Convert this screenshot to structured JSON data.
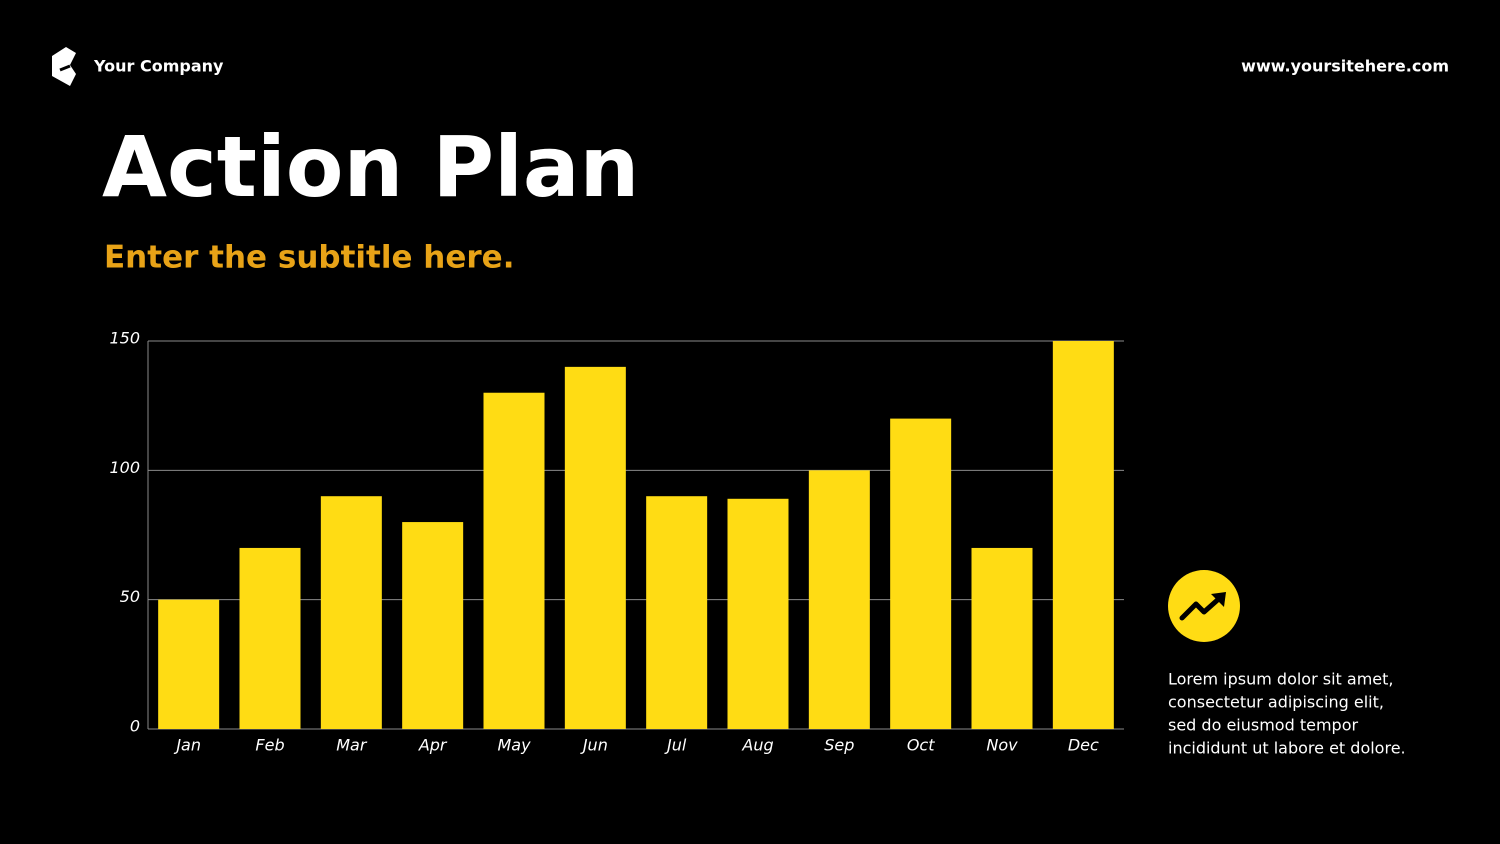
{
  "header": {
    "company": "Your Company",
    "website": "www.yoursitehere.com"
  },
  "chart_data": {
    "type": "bar",
    "title": "Action Plan",
    "subtitle": "Enter the subtitle here.",
    "categories": [
      "Jan",
      "Feb",
      "Mar",
      "Apr",
      "May",
      "Jun",
      "Jul",
      "Aug",
      "Sep",
      "Oct",
      "Nov",
      "Dec"
    ],
    "values": [
      50,
      70,
      90,
      80,
      130,
      140,
      90,
      89,
      100,
      120,
      70,
      150
    ],
    "color": "#ffdc14",
    "ylim": [
      0,
      150
    ],
    "yticks": [
      0,
      50,
      100,
      150
    ],
    "grid": true
  },
  "note": {
    "lines": [
      "Lorem ipsum dolor sit amet,",
      "consectetur adipiscing elit,",
      "sed do eiusmod tempor",
      "incididunt ut labore et dolore."
    ]
  }
}
